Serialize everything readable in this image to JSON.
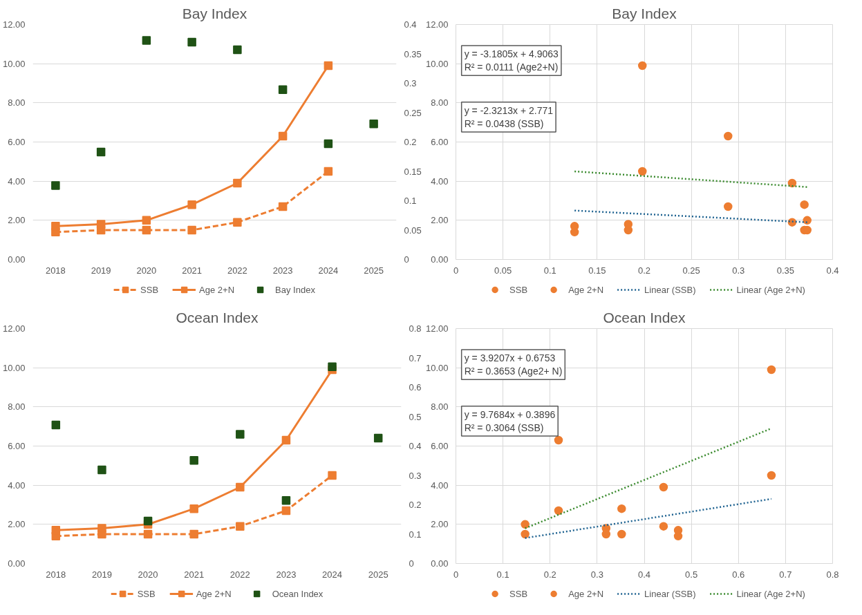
{
  "chart_data": [
    {
      "type": "line",
      "title": "Bay Index",
      "categories": [
        "2018",
        "2019",
        "2020",
        "2021",
        "2022",
        "2023",
        "2024",
        "2025"
      ],
      "ylim": [
        0,
        12
      ],
      "yticks": [
        {
          "value": 0,
          "label": "0.00"
        },
        {
          "value": 2,
          "label": "2.00"
        },
        {
          "value": 4,
          "label": "4.00"
        },
        {
          "value": 6,
          "label": "6.00"
        },
        {
          "value": 8,
          "label": "8.00"
        },
        {
          "value": 10,
          "label": "10.00"
        },
        {
          "value": 12,
          "label": "12.00"
        }
      ],
      "y2lim": [
        0,
        0.4
      ],
      "y2ticks": [
        0,
        0.05,
        0.1,
        0.15,
        0.2,
        0.25,
        0.3,
        0.35,
        0.4
      ],
      "grid": "y",
      "legend": "bottom",
      "series": [
        {
          "name": "SSB",
          "color": "#ed7d31",
          "line_style": "dashed",
          "marker": "square",
          "values": [
            1.4,
            1.5,
            1.5,
            1.5,
            1.9,
            2.7,
            4.5,
            null
          ]
        },
        {
          "name": "Age 2+N",
          "color": "#ed7d31",
          "line_style": "solid",
          "marker": "square",
          "values": [
            1.7,
            1.8,
            2.0,
            2.8,
            3.9,
            6.3,
            9.9,
            null
          ]
        },
        {
          "name": "Bay Index",
          "type": "scatter",
          "axis": "y2",
          "color": "#1f5215",
          "marker": "square",
          "values": [
            0.126,
            0.183,
            0.373,
            0.37,
            0.357,
            0.289,
            0.197,
            0.231
          ]
        }
      ]
    },
    {
      "type": "scatter",
      "title": "Bay Index",
      "x": [
        0.126,
        0.183,
        0.198,
        0.289,
        0.357,
        0.37,
        0.373
      ],
      "xlim": [
        0,
        0.4
      ],
      "xticks": [
        0,
        0.05,
        0.1,
        0.15,
        0.2,
        0.25,
        0.3,
        0.35,
        0.4
      ],
      "ylim": [
        0,
        12
      ],
      "yticks": [
        {
          "value": 0,
          "label": "0.00"
        },
        {
          "value": 2,
          "label": "2.00"
        },
        {
          "value": 4,
          "label": "4.00"
        },
        {
          "value": 6,
          "label": "6.00"
        },
        {
          "value": 8,
          "label": "8.00"
        },
        {
          "value": 10,
          "label": "10.00"
        },
        {
          "value": 12,
          "label": "12.00"
        }
      ],
      "grid": true,
      "legend": "bottom",
      "annotations": [
        "y = -3.1805x + 4.9063\nR² = 0.0111 (Age2+N)",
        "y = -2.3213x + 2.771\nR² = 0.0438 (SSB)"
      ],
      "series": [
        {
          "name": "SSB",
          "color": "#ed7d31",
          "marker": "circle",
          "values": [
            1.4,
            1.5,
            4.5,
            2.7,
            1.9,
            1.5,
            1.5
          ]
        },
        {
          "name": "Age 2+N",
          "color": "#ed7d31",
          "marker": "circle",
          "values": [
            1.7,
            1.8,
            9.9,
            6.3,
            3.9,
            2.8,
            2.0
          ]
        },
        {
          "name": "Linear (SSB)",
          "type": "line",
          "color": "#1f6391",
          "line_style": "dotted",
          "x": [
            0.126,
            0.373
          ],
          "values": [
            2.5,
            1.9
          ]
        },
        {
          "name": "Linear (Age 2+N)",
          "type": "line",
          "color": "#3a8a2e",
          "line_style": "dotted",
          "x": [
            0.126,
            0.373
          ],
          "values": [
            4.5,
            3.7
          ]
        }
      ]
    },
    {
      "type": "line",
      "title": "Ocean Index",
      "categories": [
        "2018",
        "2019",
        "2020",
        "2021",
        "2022",
        "2023",
        "2024",
        "2025"
      ],
      "ylim": [
        0,
        12
      ],
      "yticks": [
        {
          "value": 0,
          "label": "0.00"
        },
        {
          "value": 2,
          "label": "2.00"
        },
        {
          "value": 4,
          "label": "4.00"
        },
        {
          "value": 6,
          "label": "6.00"
        },
        {
          "value": 8,
          "label": "8.00"
        },
        {
          "value": 10,
          "label": "10.00"
        },
        {
          "value": 12,
          "label": "12.00"
        }
      ],
      "y2lim": [
        0,
        0.8
      ],
      "y2ticks": [
        0,
        0.1,
        0.2,
        0.3,
        0.4,
        0.5,
        0.6,
        0.7,
        0.8
      ],
      "grid": "y",
      "legend": "bottom",
      "series": [
        {
          "name": "SSB",
          "color": "#ed7d31",
          "line_style": "dashed",
          "marker": "square",
          "values": [
            1.4,
            1.5,
            1.5,
            1.5,
            1.9,
            2.7,
            4.5,
            null
          ]
        },
        {
          "name": "Age 2+N",
          "color": "#ed7d31",
          "line_style": "solid",
          "marker": "square",
          "values": [
            1.7,
            1.8,
            2.0,
            2.8,
            3.9,
            6.3,
            9.9,
            null
          ]
        },
        {
          "name": "Ocean Index",
          "type": "scatter",
          "axis": "y2",
          "color": "#1f5215",
          "marker": "square",
          "values": [
            0.472,
            0.319,
            0.145,
            0.351,
            0.44,
            0.215,
            0.67,
            0.427
          ]
        }
      ]
    },
    {
      "type": "scatter",
      "title": "Ocean Index",
      "x": [
        0.147,
        0.218,
        0.319,
        0.352,
        0.441,
        0.472,
        0.67
      ],
      "xlim": [
        0,
        0.8
      ],
      "xticks": [
        0,
        0.1,
        0.2,
        0.3,
        0.4,
        0.5,
        0.6,
        0.7,
        0.8
      ],
      "ylim": [
        0,
        12
      ],
      "yticks": [
        {
          "value": 0,
          "label": "0.00"
        },
        {
          "value": 2,
          "label": "2.00"
        },
        {
          "value": 4,
          "label": "4.00"
        },
        {
          "value": 6,
          "label": "6.00"
        },
        {
          "value": 8,
          "label": "8.00"
        },
        {
          "value": 10,
          "label": "10.00"
        },
        {
          "value": 12,
          "label": "12.00"
        }
      ],
      "grid": true,
      "legend": "bottom",
      "annotations": [
        "y = 3.9207x + 0.6753\nR² = 0.3653 (Age2+ N)",
        "y = 9.7684x + 0.3896\nR² = 0.3064 (SSB)"
      ],
      "series": [
        {
          "name": "SSB",
          "color": "#ed7d31",
          "marker": "circle",
          "values": [
            1.5,
            2.7,
            1.5,
            1.5,
            1.9,
            1.4,
            4.5
          ]
        },
        {
          "name": "Age 2+N",
          "color": "#ed7d31",
          "marker": "circle",
          "values": [
            2.0,
            6.3,
            1.8,
            2.8,
            3.9,
            1.7,
            9.9
          ]
        },
        {
          "name": "Linear (SSB)",
          "type": "line",
          "color": "#1f6391",
          "line_style": "dotted",
          "x": [
            0.147,
            0.67
          ],
          "values": [
            1.3,
            3.3
          ]
        },
        {
          "name": "Linear (Age 2+N)",
          "type": "line",
          "color": "#3a8a2e",
          "line_style": "dotted",
          "x": [
            0.147,
            0.67
          ],
          "values": [
            1.8,
            6.9
          ]
        }
      ]
    }
  ]
}
